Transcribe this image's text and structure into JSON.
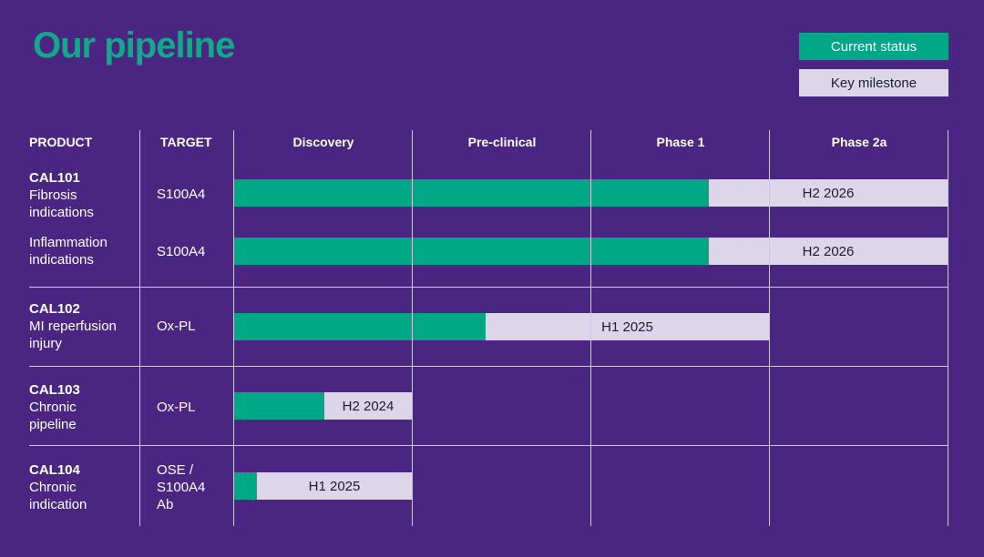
{
  "title": "Our pipeline",
  "legend": {
    "current_status": "Current status",
    "key_milestone": "Key milestone"
  },
  "columns": {
    "product": "PRODUCT",
    "target": "TARGET",
    "stages": [
      "Discovery",
      "Pre-clinical",
      "Phase 1",
      "Phase 2a"
    ]
  },
  "rows": [
    {
      "code": "CAL101",
      "desc": "Fibrosis indications",
      "target": "S100A4",
      "milestone": "H2 2026"
    },
    {
      "code": "",
      "desc": "Inflammation indications",
      "target": "S100A4",
      "milestone": "H2 2026"
    },
    {
      "code": "CAL102",
      "desc": "MI reperfusion injury",
      "target": "Ox-PL",
      "milestone": "H1 2025"
    },
    {
      "code": "CAL103",
      "desc": "Chronic pipeline",
      "target": "Ox-PL",
      "milestone": "H2 2024"
    },
    {
      "code": "CAL104",
      "desc": "Chronic indication",
      "target": "OSE / S100A4 Ab",
      "milestone": "H1 2025"
    }
  ],
  "colors": {
    "background": "#4a2682",
    "current": "#00a887",
    "milestone": "#ddd6ea",
    "title": "#12a98a"
  }
}
